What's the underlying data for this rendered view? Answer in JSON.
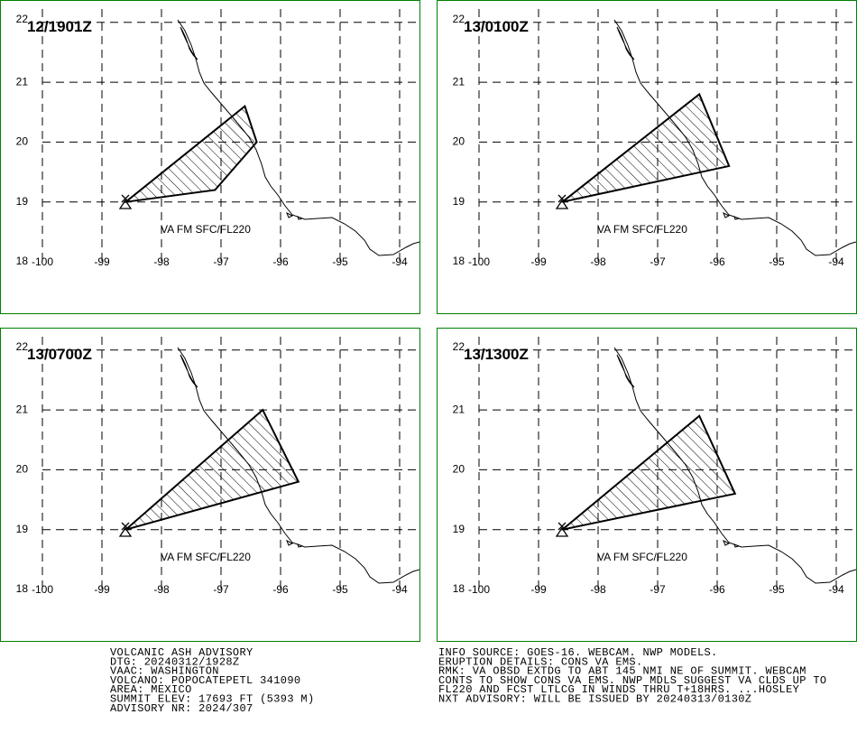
{
  "lon_ticks": [
    -100,
    -99,
    -98,
    -97,
    -96,
    -95,
    -94
  ],
  "lat_ticks": [
    18,
    19,
    20,
    21,
    22
  ],
  "panels": [
    {
      "time": "12/1901Z",
      "label": "VA FM SFC/FL220",
      "polygon": {
        "lon": [
          -98.6,
          -96.6,
          -96.4,
          -97.1
        ],
        "lat": [
          19.0,
          20.6,
          20.0,
          19.2
        ]
      }
    },
    {
      "time": "13/0100Z",
      "label": "VA FM SFC/FL220",
      "polygon": {
        "lon": [
          -98.6,
          -96.3,
          -95.8
        ],
        "lat": [
          19.0,
          20.8,
          19.6
        ]
      }
    },
    {
      "time": "13/0700Z",
      "label": "VA FM SFC/FL220",
      "polygon": {
        "lon": [
          -98.6,
          -96.3,
          -95.7
        ],
        "lat": [
          19.0,
          21.0,
          19.8
        ]
      }
    },
    {
      "time": "13/1300Z",
      "label": "VA FM SFC/FL220",
      "polygon": {
        "lon": [
          -98.6,
          -96.3,
          -95.7
        ],
        "lat": [
          19.0,
          20.9,
          19.6
        ]
      }
    }
  ],
  "advisory": {
    "left": [
      "VOLCANIC ASH ADVISORY",
      "DTG: 20240312/1928Z",
      "VAAC: WASHINGTON",
      "VOLCANO: POPOCATEPETL 341090",
      "AREA: MEXICO",
      "SUMMIT ELEV: 17693 FT (5393 M)",
      "ADVISORY NR: 2024/307"
    ],
    "right": [
      "INFO SOURCE: GOES-16. WEBCAM. NWP MODELS.",
      "ERUPTION DETAILS: CONS VA EMS.",
      "RMK: VA OBSD EXTDG TO ABT 145 NMI NE OF SUMMIT. WEBCAM",
      "CONTS TO SHOW CONS VA EMS. NWP MDLS SUGGEST VA CLDS UP TO",
      "FL220 AND FCST LTLCG IN WINDS THRU T+18HRS. ...HOSLEY",
      "NXT ADVISORY: WILL BE ISSUED BY 20240313/0130Z"
    ]
  }
}
